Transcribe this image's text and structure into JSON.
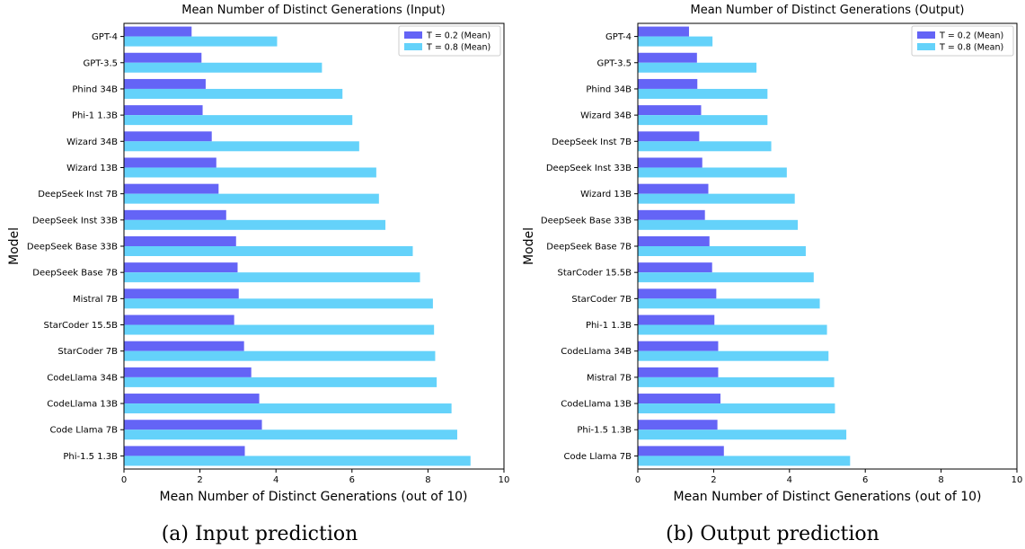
{
  "colors": {
    "low": "#6464f6",
    "high": "#64d2fa"
  },
  "chart_data": [
    {
      "type": "bar",
      "orientation": "horizontal",
      "title": "Mean Number of Distinct Generations (Input)",
      "xlabel": "Mean Number of Distinct Generations (out of 10)",
      "ylabel": "Model",
      "xlim": [
        0,
        10
      ],
      "xticks": [
        0,
        2,
        4,
        6,
        8,
        10
      ],
      "grid": false,
      "legend_position": "top-right",
      "caption": "(a) Input prediction",
      "categories": [
        "GPT-4",
        "GPT-3.5",
        "Phind 34B",
        "Phi-1 1.3B",
        "Wizard 34B",
        "Wizard 13B",
        "DeepSeek Inst 7B",
        "DeepSeek Inst 33B",
        "DeepSeek Base 33B",
        "DeepSeek Base 7B",
        "Mistral 7B",
        "StarCoder 15.5B",
        "StarCoder 7B",
        "CodeLlama 34B",
        "CodeLlama 13B",
        "Code Llama 7B",
        "Phi-1.5 1.3B"
      ],
      "series": [
        {
          "name": "T = 0.2 (Mean)",
          "values": [
            1.78,
            2.04,
            2.15,
            2.07,
            2.31,
            2.43,
            2.49,
            2.69,
            2.95,
            2.99,
            3.02,
            2.9,
            3.16,
            3.35,
            3.56,
            3.63,
            3.18
          ]
        },
        {
          "name": "T = 0.8 (Mean)",
          "values": [
            4.03,
            5.21,
            5.75,
            6.01,
            6.19,
            6.64,
            6.71,
            6.88,
            7.6,
            7.79,
            8.13,
            8.16,
            8.19,
            8.23,
            8.62,
            8.77,
            9.12
          ]
        }
      ]
    },
    {
      "type": "bar",
      "orientation": "horizontal",
      "title": "Mean Number of Distinct Generations (Output)",
      "xlabel": "Mean Number of Distinct Generations (out of 10)",
      "ylabel": "Model",
      "xlim": [
        0,
        10
      ],
      "xticks": [
        0,
        2,
        4,
        6,
        8,
        10
      ],
      "grid": false,
      "legend_position": "top-right",
      "caption": "(b) Output prediction",
      "categories": [
        "GPT-4",
        "GPT-3.5",
        "Phind 34B",
        "Wizard 34B",
        "DeepSeek Inst 7B",
        "DeepSeek Inst 33B",
        "Wizard 13B",
        "DeepSeek Base 33B",
        "DeepSeek Base 7B",
        "StarCoder 15.5B",
        "StarCoder 7B",
        "Phi-1 1.3B",
        "CodeLlama 34B",
        "Mistral 7B",
        "CodeLlama 13B",
        "Phi-1.5 1.3B",
        "Code Llama 7B"
      ],
      "series": [
        {
          "name": "T = 0.2 (Mean)",
          "values": [
            1.35,
            1.56,
            1.57,
            1.67,
            1.62,
            1.7,
            1.86,
            1.77,
            1.89,
            1.96,
            2.07,
            2.02,
            2.12,
            2.12,
            2.18,
            2.1,
            2.27
          ]
        },
        {
          "name": "T = 0.8 (Mean)",
          "values": [
            1.97,
            3.13,
            3.42,
            3.42,
            3.52,
            3.93,
            4.14,
            4.22,
            4.43,
            4.64,
            4.8,
            4.99,
            5.03,
            5.18,
            5.2,
            5.5,
            5.6
          ]
        }
      ]
    }
  ]
}
